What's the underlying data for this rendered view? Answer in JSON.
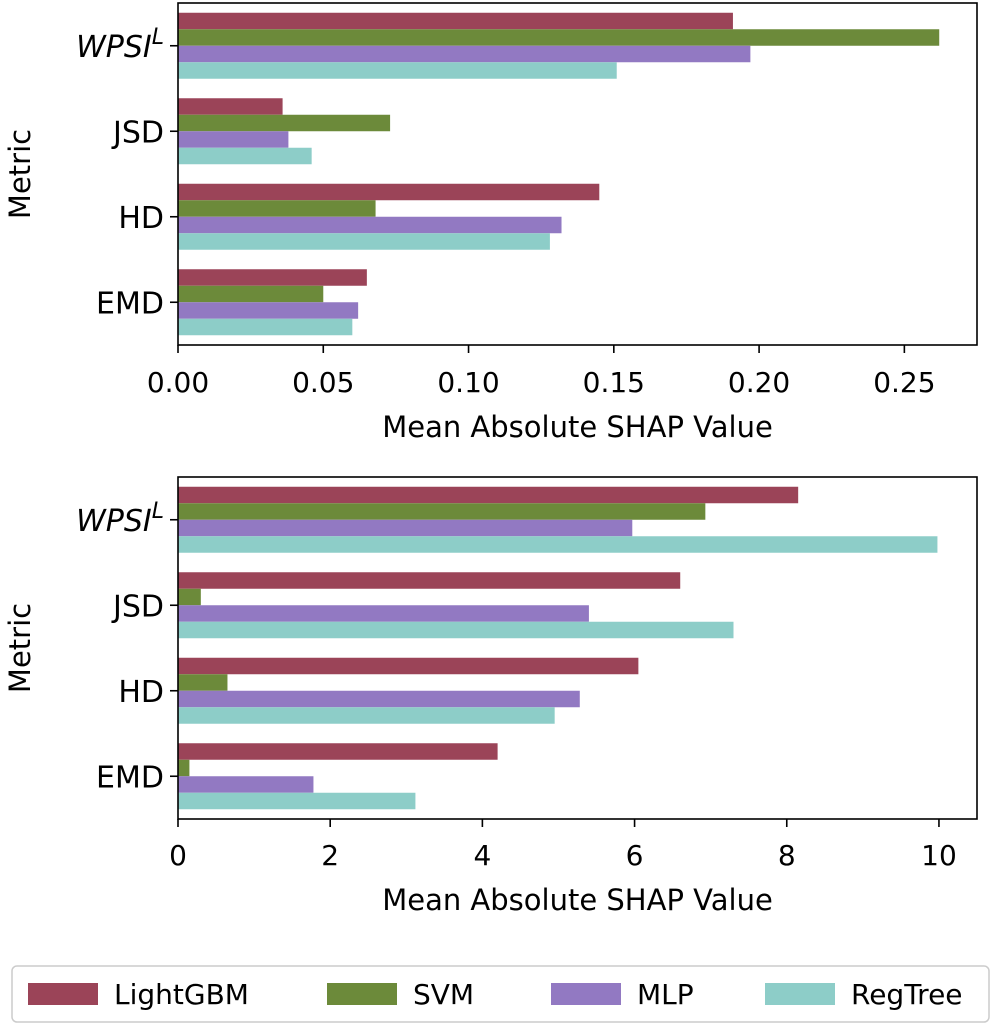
{
  "colors": {
    "LightGBM": "#9b4458",
    "SVM": "#6c8a3a",
    "MLP": "#9279c2",
    "RegTree": "#8dcdc8"
  },
  "chart_data": [
    {
      "type": "bar",
      "orientation": "horizontal",
      "categories": [
        "WPSI^L",
        "JSD",
        "HD",
        "EMD"
      ],
      "category_display": [
        {
          "base": "WPSI",
          "sup": "L",
          "italic": true
        },
        {
          "base": "JSD",
          "sup": "",
          "italic": false
        },
        {
          "base": "HD",
          "sup": "",
          "italic": false
        },
        {
          "base": "EMD",
          "sup": "",
          "italic": false
        }
      ],
      "series": [
        {
          "name": "LightGBM",
          "values": [
            0.191,
            0.036,
            0.145,
            0.065
          ]
        },
        {
          "name": "SVM",
          "values": [
            0.262,
            0.073,
            0.068,
            0.05
          ]
        },
        {
          "name": "MLP",
          "values": [
            0.197,
            0.038,
            0.132,
            0.062
          ]
        },
        {
          "name": "RegTree",
          "values": [
            0.151,
            0.046,
            0.128,
            0.06
          ]
        }
      ],
      "xlim": [
        0,
        0.275
      ],
      "xticks": [
        0.0,
        0.05,
        0.1,
        0.15,
        0.2,
        0.25
      ],
      "xtick_labels": [
        "0.00",
        "0.05",
        "0.10",
        "0.15",
        "0.20",
        "0.25"
      ],
      "xlabel": "Mean Absolute SHAP Value",
      "ylabel": "Metric",
      "grid": false
    },
    {
      "type": "bar",
      "orientation": "horizontal",
      "categories": [
        "WPSI^L",
        "JSD",
        "HD",
        "EMD"
      ],
      "category_display": [
        {
          "base": "WPSI",
          "sup": "L",
          "italic": true
        },
        {
          "base": "JSD",
          "sup": "",
          "italic": false
        },
        {
          "base": "HD",
          "sup": "",
          "italic": false
        },
        {
          "base": "EMD",
          "sup": "",
          "italic": false
        }
      ],
      "series": [
        {
          "name": "LightGBM",
          "values": [
            8.15,
            6.6,
            6.05,
            4.2
          ]
        },
        {
          "name": "SVM",
          "values": [
            6.93,
            0.3,
            0.65,
            0.15
          ]
        },
        {
          "name": "MLP",
          "values": [
            5.97,
            5.4,
            5.28,
            1.78
          ]
        },
        {
          "name": "RegTree",
          "values": [
            9.98,
            7.3,
            4.95,
            3.12
          ]
        }
      ],
      "xlim": [
        0,
        10.5
      ],
      "xticks": [
        0,
        2,
        4,
        6,
        8,
        10
      ],
      "xtick_labels": [
        "0",
        "2",
        "4",
        "6",
        "8",
        "10"
      ],
      "xlabel": "Mean Absolute SHAP Value",
      "ylabel": "Metric",
      "grid": false
    }
  ],
  "legend": {
    "placement": "bottom",
    "items": [
      "LightGBM",
      "SVM",
      "MLP",
      "RegTree"
    ]
  }
}
